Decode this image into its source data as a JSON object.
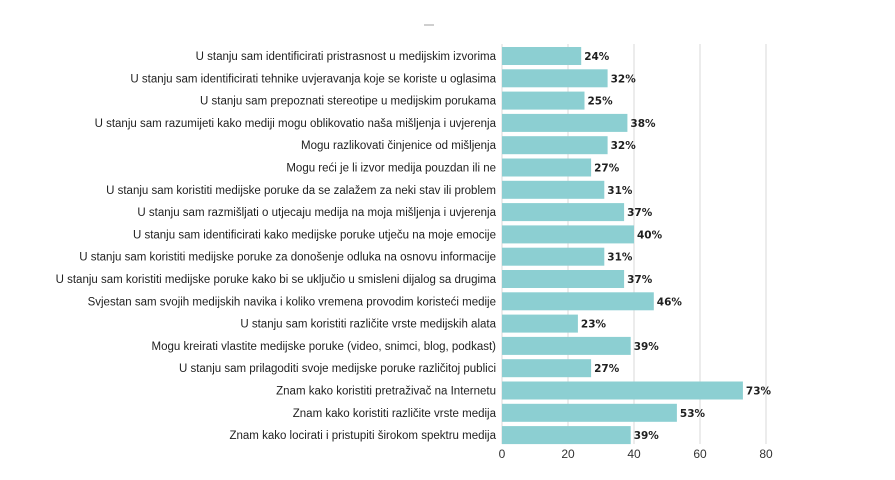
{
  "chart_data": {
    "type": "bar",
    "orientation": "horizontal",
    "bar_color": "#8ccfd2",
    "categories": [
      "U stanju sam identificirati pristrasnost u medijskim izvorima",
      "U stanju sam identificirati tehnike uvjeravanja koje se koriste u oglasima",
      "U stanju sam prepoznati stereotipe u medijskim porukama",
      "U stanju sam razumijeti kako mediji mogu oblikovatio naša mišljenja i uvjerenja",
      "Mogu razlikovati činjenice od mišljenja",
      "Mogu reći je li izvor medija pouzdan ili ne",
      "U stanju sam koristiti medijske poruke da se zalažem za neki stav ili problem",
      "U stanju sam razmišljati o utjecaju medija na moja mišljenja i uvjerenja",
      "U stanju sam identificirati kako medijske poruke utječu na moje emocije",
      "U stanju sam koristiti medijske poruke za donošenje odluka na osnovu informacije",
      "U stanju sam koristiti medijske poruke kako bi se uključio u smisleni dijalog sa drugima",
      "Svjestan sam svojih medijskih navika i koliko vremena provodim koristeći medije",
      "U stanju sam koristiti različite vrste medijskih alata",
      "Mogu kreirati vlastite medijske poruke (video, snimci, blog, podkast)",
      "U stanju sam prilagoditi svoje medijske poruke različitoj publici",
      "Znam kako koristiti pretraživač na Internetu",
      "Znam kako koristiti različite vrste medija",
      "Znam kako locirati i pristupiti širokom spektru medija"
    ],
    "values": [
      24,
      32,
      25,
      38,
      32,
      27,
      31,
      37,
      40,
      31,
      37,
      46,
      23,
      39,
      27,
      73,
      53,
      39
    ],
    "value_labels": [
      "24%",
      "32%",
      "25%",
      "38%",
      "32%",
      "27%",
      "31%",
      "37%",
      "40%",
      "31%",
      "37%",
      "46%",
      "23%",
      "39%",
      "27%",
      "73%",
      "53%",
      "39%"
    ],
    "x_ticks": [
      "0",
      "20",
      "40",
      "60",
      "80"
    ],
    "xlim": [
      0,
      80
    ],
    "grid": true
  }
}
